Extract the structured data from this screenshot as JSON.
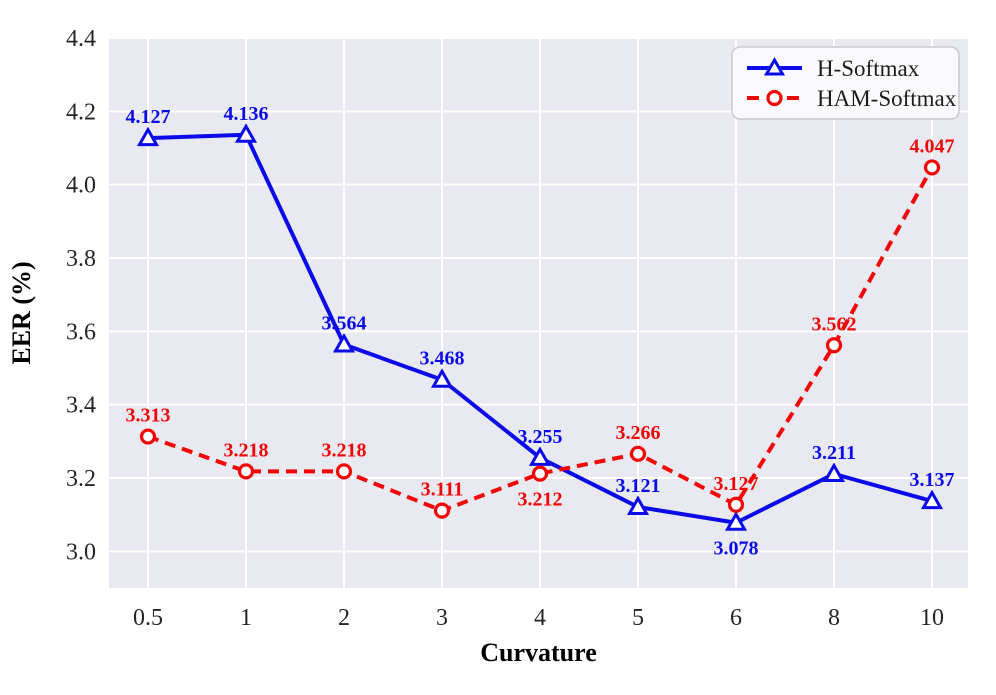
{
  "figure": {
    "aria_label": "Line chart of EER (%) versus Curvature for H-Softmax and HAM-Softmax"
  },
  "chart_data": {
    "type": "line",
    "title": "",
    "xlabel": "Curvature",
    "ylabel": "EER (%)",
    "x_categories": [
      "0.5",
      "1",
      "2",
      "3",
      "4",
      "5",
      "6",
      "8",
      "10"
    ],
    "y_ticks": [
      "3.0",
      "3.2",
      "3.4",
      "3.6",
      "3.8",
      "4.0",
      "4.2",
      "4.4"
    ],
    "ylim": [
      2.9,
      4.4
    ],
    "grid": true,
    "legend_position": "upper right",
    "series": [
      {
        "name": "H-Softmax",
        "color": "#0b0bea",
        "line_style": "solid",
        "marker": "triangle",
        "values": [
          4.127,
          4.136,
          3.564,
          3.468,
          3.255,
          3.121,
          3.078,
          3.211,
          3.137
        ],
        "label_positions": [
          "above",
          "above",
          "above",
          "above",
          "above",
          "above",
          "below",
          "above",
          "above"
        ]
      },
      {
        "name": "HAM-Softmax",
        "color": "#f20505",
        "line_style": "dashed",
        "marker": "circle",
        "values": [
          3.313,
          3.218,
          3.218,
          3.111,
          3.212,
          3.266,
          3.127,
          3.562,
          4.047
        ],
        "label_positions": [
          "above",
          "above",
          "above",
          "above",
          "below",
          "above",
          "above",
          "above",
          "above"
        ]
      }
    ]
  },
  "style": {
    "plot_bg": "#e9e9f2",
    "grid_color": "#ffffff",
    "tick_color": "#262626",
    "axis_title_color": "#000000",
    "legend_bg": "#fafafc",
    "legend_border": "#c9c9cf",
    "legend_text": "#1c1c1c",
    "marker_fill": "#ffffff"
  }
}
